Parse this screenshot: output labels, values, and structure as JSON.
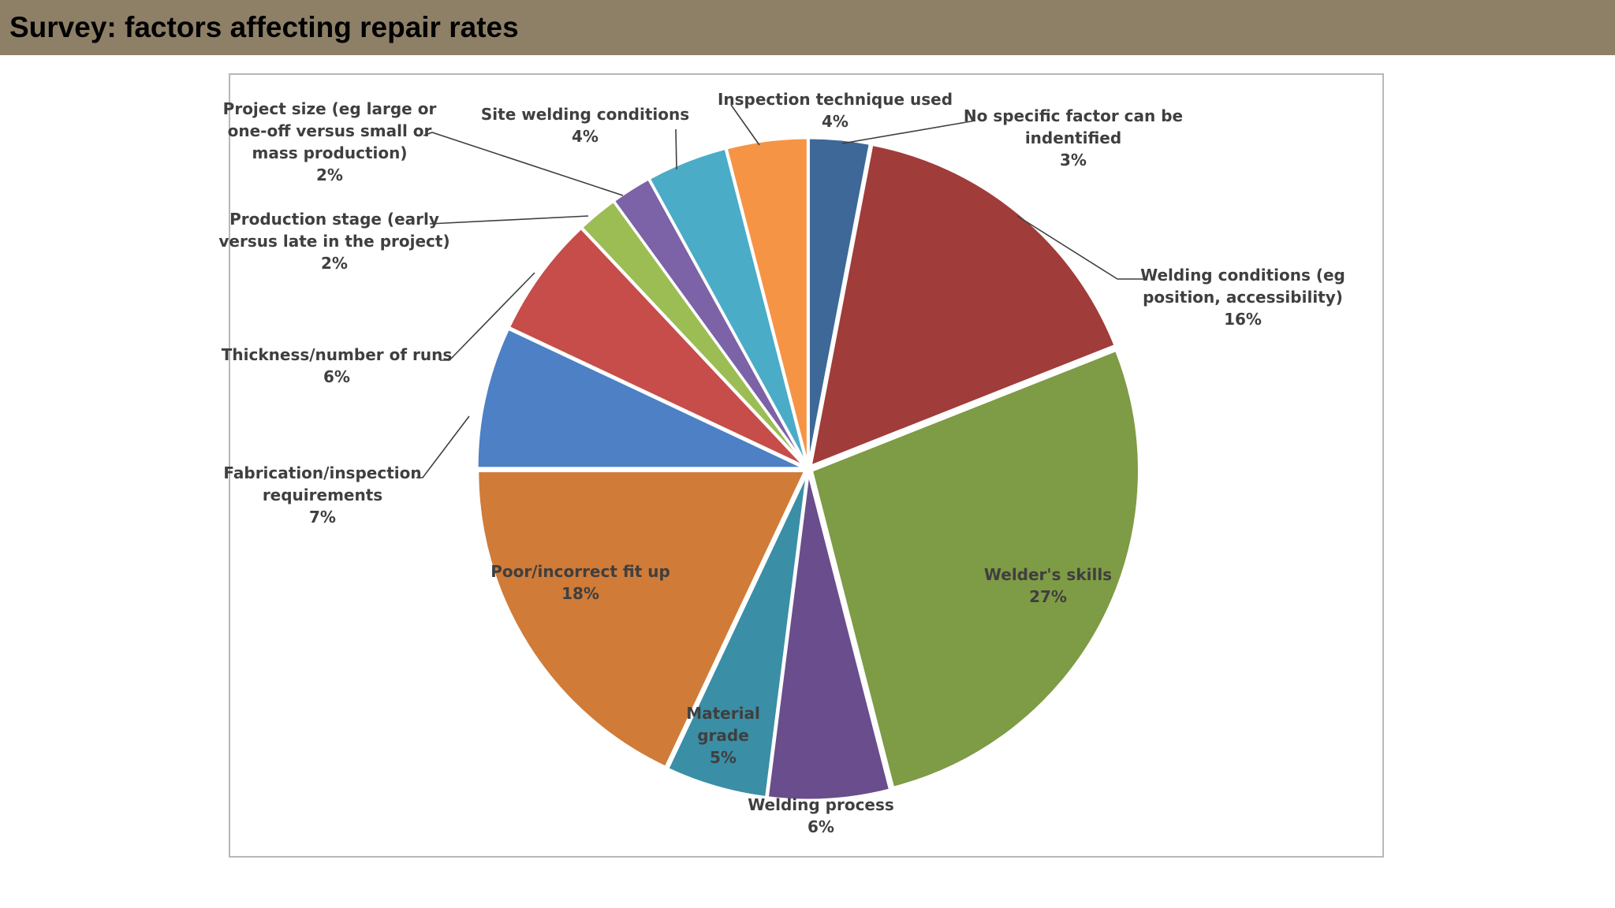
{
  "header": {
    "title": "Survey: factors affecting repair rates",
    "background_color": "#8e8067"
  },
  "chart_data": {
    "type": "pie",
    "title": "",
    "unit": "%",
    "start_angle_deg": 0,
    "direction": "clockwise",
    "slices": [
      {
        "name": "No specific factor can be indentified",
        "label_lines": [
          "No specific factor can be",
          "indentified"
        ],
        "value": 3,
        "display": "3%",
        "color": "#3d6898"
      },
      {
        "name": "Welding conditions (eg position, accessibility)",
        "label_lines": [
          "Welding conditions (eg",
          "position, accessibility)"
        ],
        "value": 16,
        "display": "16%",
        "color": "#a03c3a"
      },
      {
        "name": "Welder's skills",
        "label_lines": [
          "Welder's skills"
        ],
        "value": 27,
        "display": "27%",
        "color": "#7e9b45"
      },
      {
        "name": "Welding process",
        "label_lines": [
          "Welding process"
        ],
        "value": 6,
        "display": "6%",
        "color": "#6a4d8c"
      },
      {
        "name": "Material grade",
        "label_lines": [
          "Material",
          "grade"
        ],
        "value": 5,
        "display": "5%",
        "color": "#3a8ea6"
      },
      {
        "name": "Poor/incorrect fit up",
        "label_lines": [
          "Poor/incorrect fit up"
        ],
        "value": 18,
        "display": "18%",
        "color": "#d07b38"
      },
      {
        "name": "Fabrication/inspection requirements",
        "label_lines": [
          "Fabrication/inspection",
          "requirements"
        ],
        "value": 7,
        "display": "7%",
        "color": "#4d80c4"
      },
      {
        "name": "Thickness/number of runs",
        "label_lines": [
          "Thickness/number  of runs"
        ],
        "value": 6,
        "display": "6%",
        "color": "#c64d4a"
      },
      {
        "name": "Production stage (early versus late in the project)",
        "label_lines": [
          "Production stage (early",
          "versus late in the project)"
        ],
        "value": 2,
        "display": "2%",
        "color": "#9bbd54"
      },
      {
        "name": "Project size (eg large or one-off versus small or mass production)",
        "label_lines": [
          "Project size (eg large or",
          "one-off versus small or",
          "mass production)"
        ],
        "value": 2,
        "display": "2%",
        "color": "#7c62a6"
      },
      {
        "name": "Site welding conditions",
        "label_lines": [
          "Site welding conditions"
        ],
        "value": 4,
        "display": "4%",
        "color": "#4aacc7"
      },
      {
        "name": "Inspection technique used",
        "label_lines": [
          "Inspection technique used"
        ],
        "value": 4,
        "display": "4%",
        "color": "#f69446"
      }
    ]
  }
}
